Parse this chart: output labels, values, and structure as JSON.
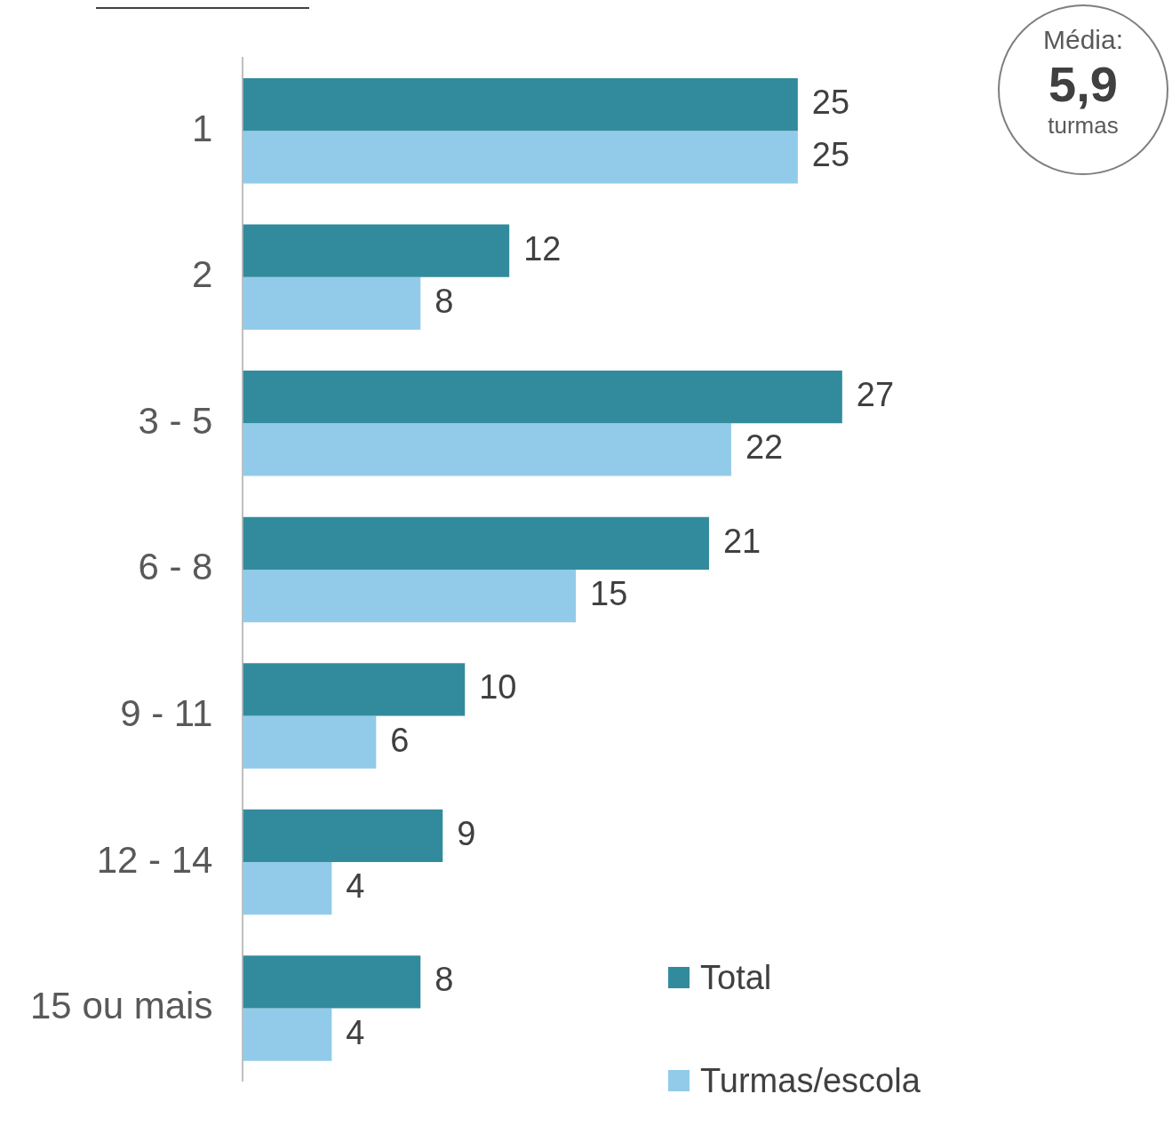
{
  "chart_data": {
    "type": "bar",
    "orientation": "horizontal",
    "categories": [
      "1",
      "2",
      "3 - 5",
      "6 - 8",
      "9 - 11",
      "12 - 14",
      "15 ou mais"
    ],
    "series": [
      {
        "name": "Total",
        "color": "#328b9c",
        "values": [
          25,
          12,
          27,
          21,
          10,
          9,
          8
        ]
      },
      {
        "name": "Turmas/escola",
        "color": "#92cbe9",
        "values": [
          25,
          8,
          22,
          15,
          6,
          4,
          4
        ]
      }
    ],
    "data_labels": true,
    "legend": "bottom right",
    "tick_labels": "y",
    "annotations": [
      "Média:",
      "5,9",
      "turmas"
    ]
  }
}
